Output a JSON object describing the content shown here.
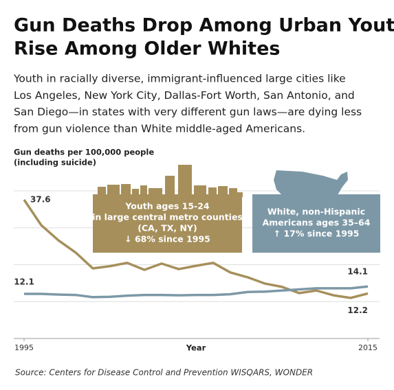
{
  "chart_data": {
    "type": "line",
    "title": [
      "Gun Deaths Drop Among Urban Youth,",
      "Rise Among Older Whites"
    ],
    "subtitle": [
      "Youth in racially diverse, immigrant-influenced large cities like",
      "Los Angeles, New York City, Dallas-Fort Worth, San Antonio, and",
      "San Diego—in states with very different gun laws—are dying less",
      "from gun violence than White middle-aged Americans."
    ],
    "ylabel": [
      "Gun deaths per 100,000 people",
      "(including suicide)"
    ],
    "xlabel": "Year",
    "source": "Source: Centers for Disease Control and Prevention WISQARS, WONDER",
    "x": [
      1995,
      1996,
      1997,
      1998,
      1999,
      2000,
      2001,
      2002,
      2003,
      2004,
      2005,
      2006,
      2007,
      2008,
      2009,
      2010,
      2011,
      2012,
      2013,
      2014,
      2015
    ],
    "xlim": [
      1995,
      2015
    ],
    "xticks": [
      1995,
      2015
    ],
    "ylim": [
      0,
      40
    ],
    "yticks": [
      0,
      10,
      20,
      30,
      40
    ],
    "grid": true,
    "series": [
      {
        "name": "Youth",
        "color": "#a68f5b",
        "values": [
          37.6,
          30.7,
          26.6,
          23.3,
          19.0,
          19.6,
          20.5,
          18.6,
          20.3,
          18.8,
          19.7,
          20.5,
          17.9,
          16.6,
          14.9,
          14.0,
          12.3,
          13.0,
          11.7,
          11.0,
          12.2
        ],
        "annotation": [
          "Youth ages 15-24",
          "in large central metro counties",
          "(CA, TX, NY)",
          "↓ 68% since 1995"
        ]
      },
      {
        "name": "White",
        "color": "#7c98a6",
        "values": [
          12.1,
          12.1,
          11.9,
          11.8,
          11.2,
          11.3,
          11.6,
          11.8,
          11.8,
          11.7,
          11.8,
          11.8,
          12.0,
          12.6,
          12.7,
          13.0,
          13.3,
          13.6,
          13.6,
          13.6,
          14.1
        ],
        "annotation": [
          "White, non-Hispanic",
          "Americans ages 35–64",
          "↑ 17% since 1995"
        ]
      }
    ]
  }
}
